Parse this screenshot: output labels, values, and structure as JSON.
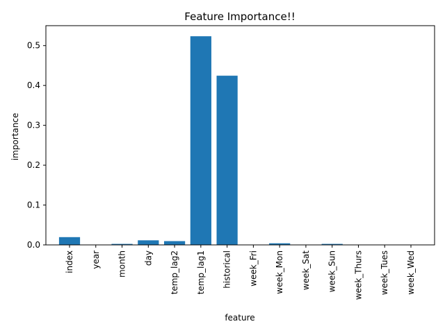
{
  "chart_data": {
    "type": "bar",
    "title": "Feature Importance!!",
    "xlabel": "feature",
    "ylabel": "importance",
    "categories": [
      "index",
      "year",
      "month",
      "day",
      "temp_lag2",
      "temp_lag1",
      "historical",
      "week_Fri",
      "week_Mon",
      "week_Sat",
      "week_Sun",
      "week_Thurs",
      "week_Tues",
      "week_Wed"
    ],
    "values": [
      0.0195,
      0.0003,
      0.0025,
      0.0115,
      0.0095,
      0.5235,
      0.4245,
      0.0005,
      0.004,
      0.0003,
      0.0025,
      0.0003,
      0.0003,
      0.0003
    ],
    "ylim": [
      0,
      0.55
    ],
    "yticks": [
      0.0,
      0.1,
      0.2,
      0.3,
      0.4,
      0.5
    ],
    "ytick_labels": [
      "0.0",
      "0.1",
      "0.2",
      "0.3",
      "0.4",
      "0.5"
    ],
    "bar_color": "#1f77b4",
    "grid": false,
    "legend": "none"
  }
}
